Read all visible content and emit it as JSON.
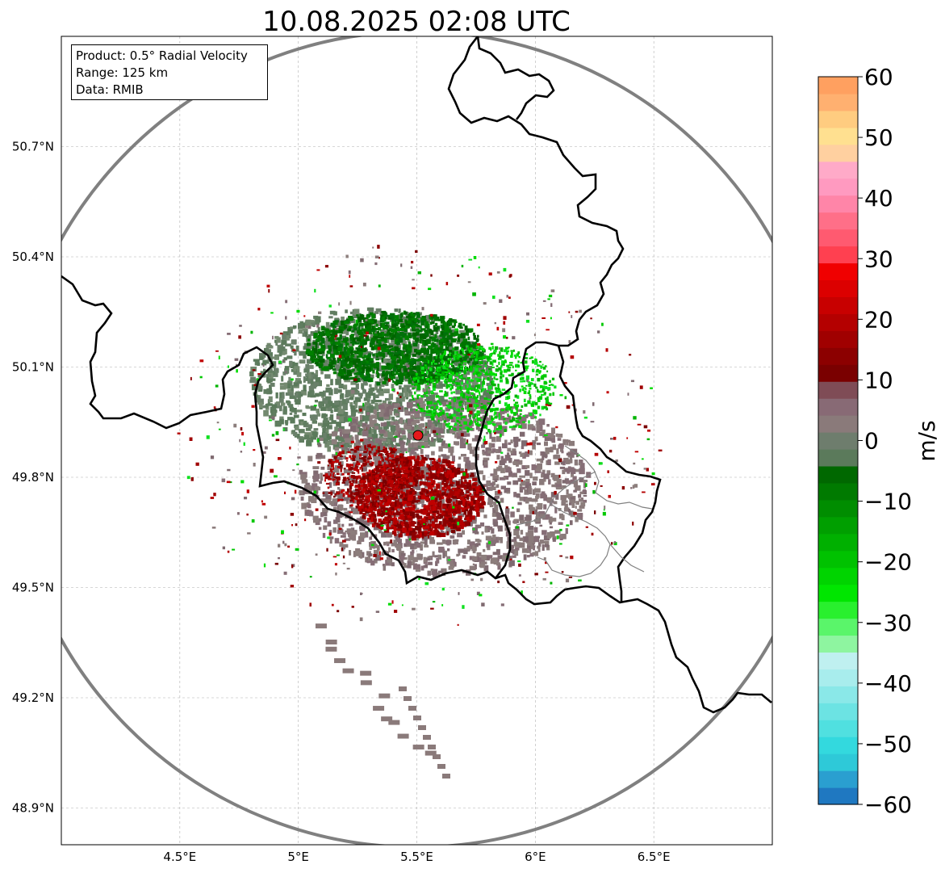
{
  "title": "10.08.2025 02:08 UTC",
  "info": {
    "product": "Product: 0.5° Radial Velocity",
    "range": "Range: 125 km",
    "data": "Data: RMIB"
  },
  "map": {
    "lon_ticks": [
      {
        "value": 4.5,
        "label": "4.5°E"
      },
      {
        "value": 5.0,
        "label": "5°E"
      },
      {
        "value": 5.5,
        "label": "5.5°E"
      },
      {
        "value": 6.0,
        "label": "6°E"
      },
      {
        "value": 6.5,
        "label": "6.5°E"
      }
    ],
    "lat_ticks": [
      {
        "value": 50.7,
        "label": "50.7°N"
      },
      {
        "value": 50.4,
        "label": "50.4°N"
      },
      {
        "value": 50.1,
        "label": "50.1°N"
      },
      {
        "value": 49.8,
        "label": "49.8°N"
      },
      {
        "value": 49.5,
        "label": "49.5°N"
      },
      {
        "value": 49.2,
        "label": "49.2°N"
      },
      {
        "value": 48.9,
        "label": "48.9°N"
      }
    ],
    "extent": {
      "lon_min": 4.0,
      "lon_max": 7.0,
      "lat_min": 48.8,
      "lat_max": 51.0
    },
    "radar_site": {
      "lon": 5.505,
      "lat": 49.914
    },
    "range_ring_color": "#808080",
    "site_color": "#e41a1c"
  },
  "colorbar": {
    "label": "m/s",
    "min": -60,
    "max": 60,
    "ticks": [
      {
        "value": 60,
        "label": "60"
      },
      {
        "value": 50,
        "label": "50"
      },
      {
        "value": 40,
        "label": "40"
      },
      {
        "value": 30,
        "label": "30"
      },
      {
        "value": 20,
        "label": "20"
      },
      {
        "value": 10,
        "label": "10"
      },
      {
        "value": 0,
        "label": "0"
      },
      {
        "value": -10,
        "label": "−10"
      },
      {
        "value": -20,
        "label": "−20"
      },
      {
        "value": -30,
        "label": "−30"
      },
      {
        "value": -40,
        "label": "−40"
      },
      {
        "value": -50,
        "label": "−50"
      },
      {
        "value": -60,
        "label": "−60"
      }
    ],
    "colors": [
      "#1f78c1",
      "#2a9fd0",
      "#2ec9d8",
      "#33d9de",
      "#50e0e0",
      "#6ce3e3",
      "#8ae8e8",
      "#a8eded",
      "#bff0f0",
      "#8ef5a0",
      "#5af56a",
      "#29f02e",
      "#00e600",
      "#00d400",
      "#00c200",
      "#00b000",
      "#009f00",
      "#008d00",
      "#007a00",
      "#006800",
      "#5b7a5b",
      "#6e7d6d",
      "#8a7a7a",
      "#886a75",
      "#7f4c56",
      "#7a0000",
      "#8c0000",
      "#a00000",
      "#b40000",
      "#c80000",
      "#dc0000",
      "#f00000",
      "#ff4050",
      "#ff5a70",
      "#ff6f88",
      "#ff85a8",
      "#ff9ac0",
      "#ffaac8",
      "#ffd0a0",
      "#ffe090",
      "#ffcc80",
      "#ffb070",
      "#ffa060"
    ]
  }
}
